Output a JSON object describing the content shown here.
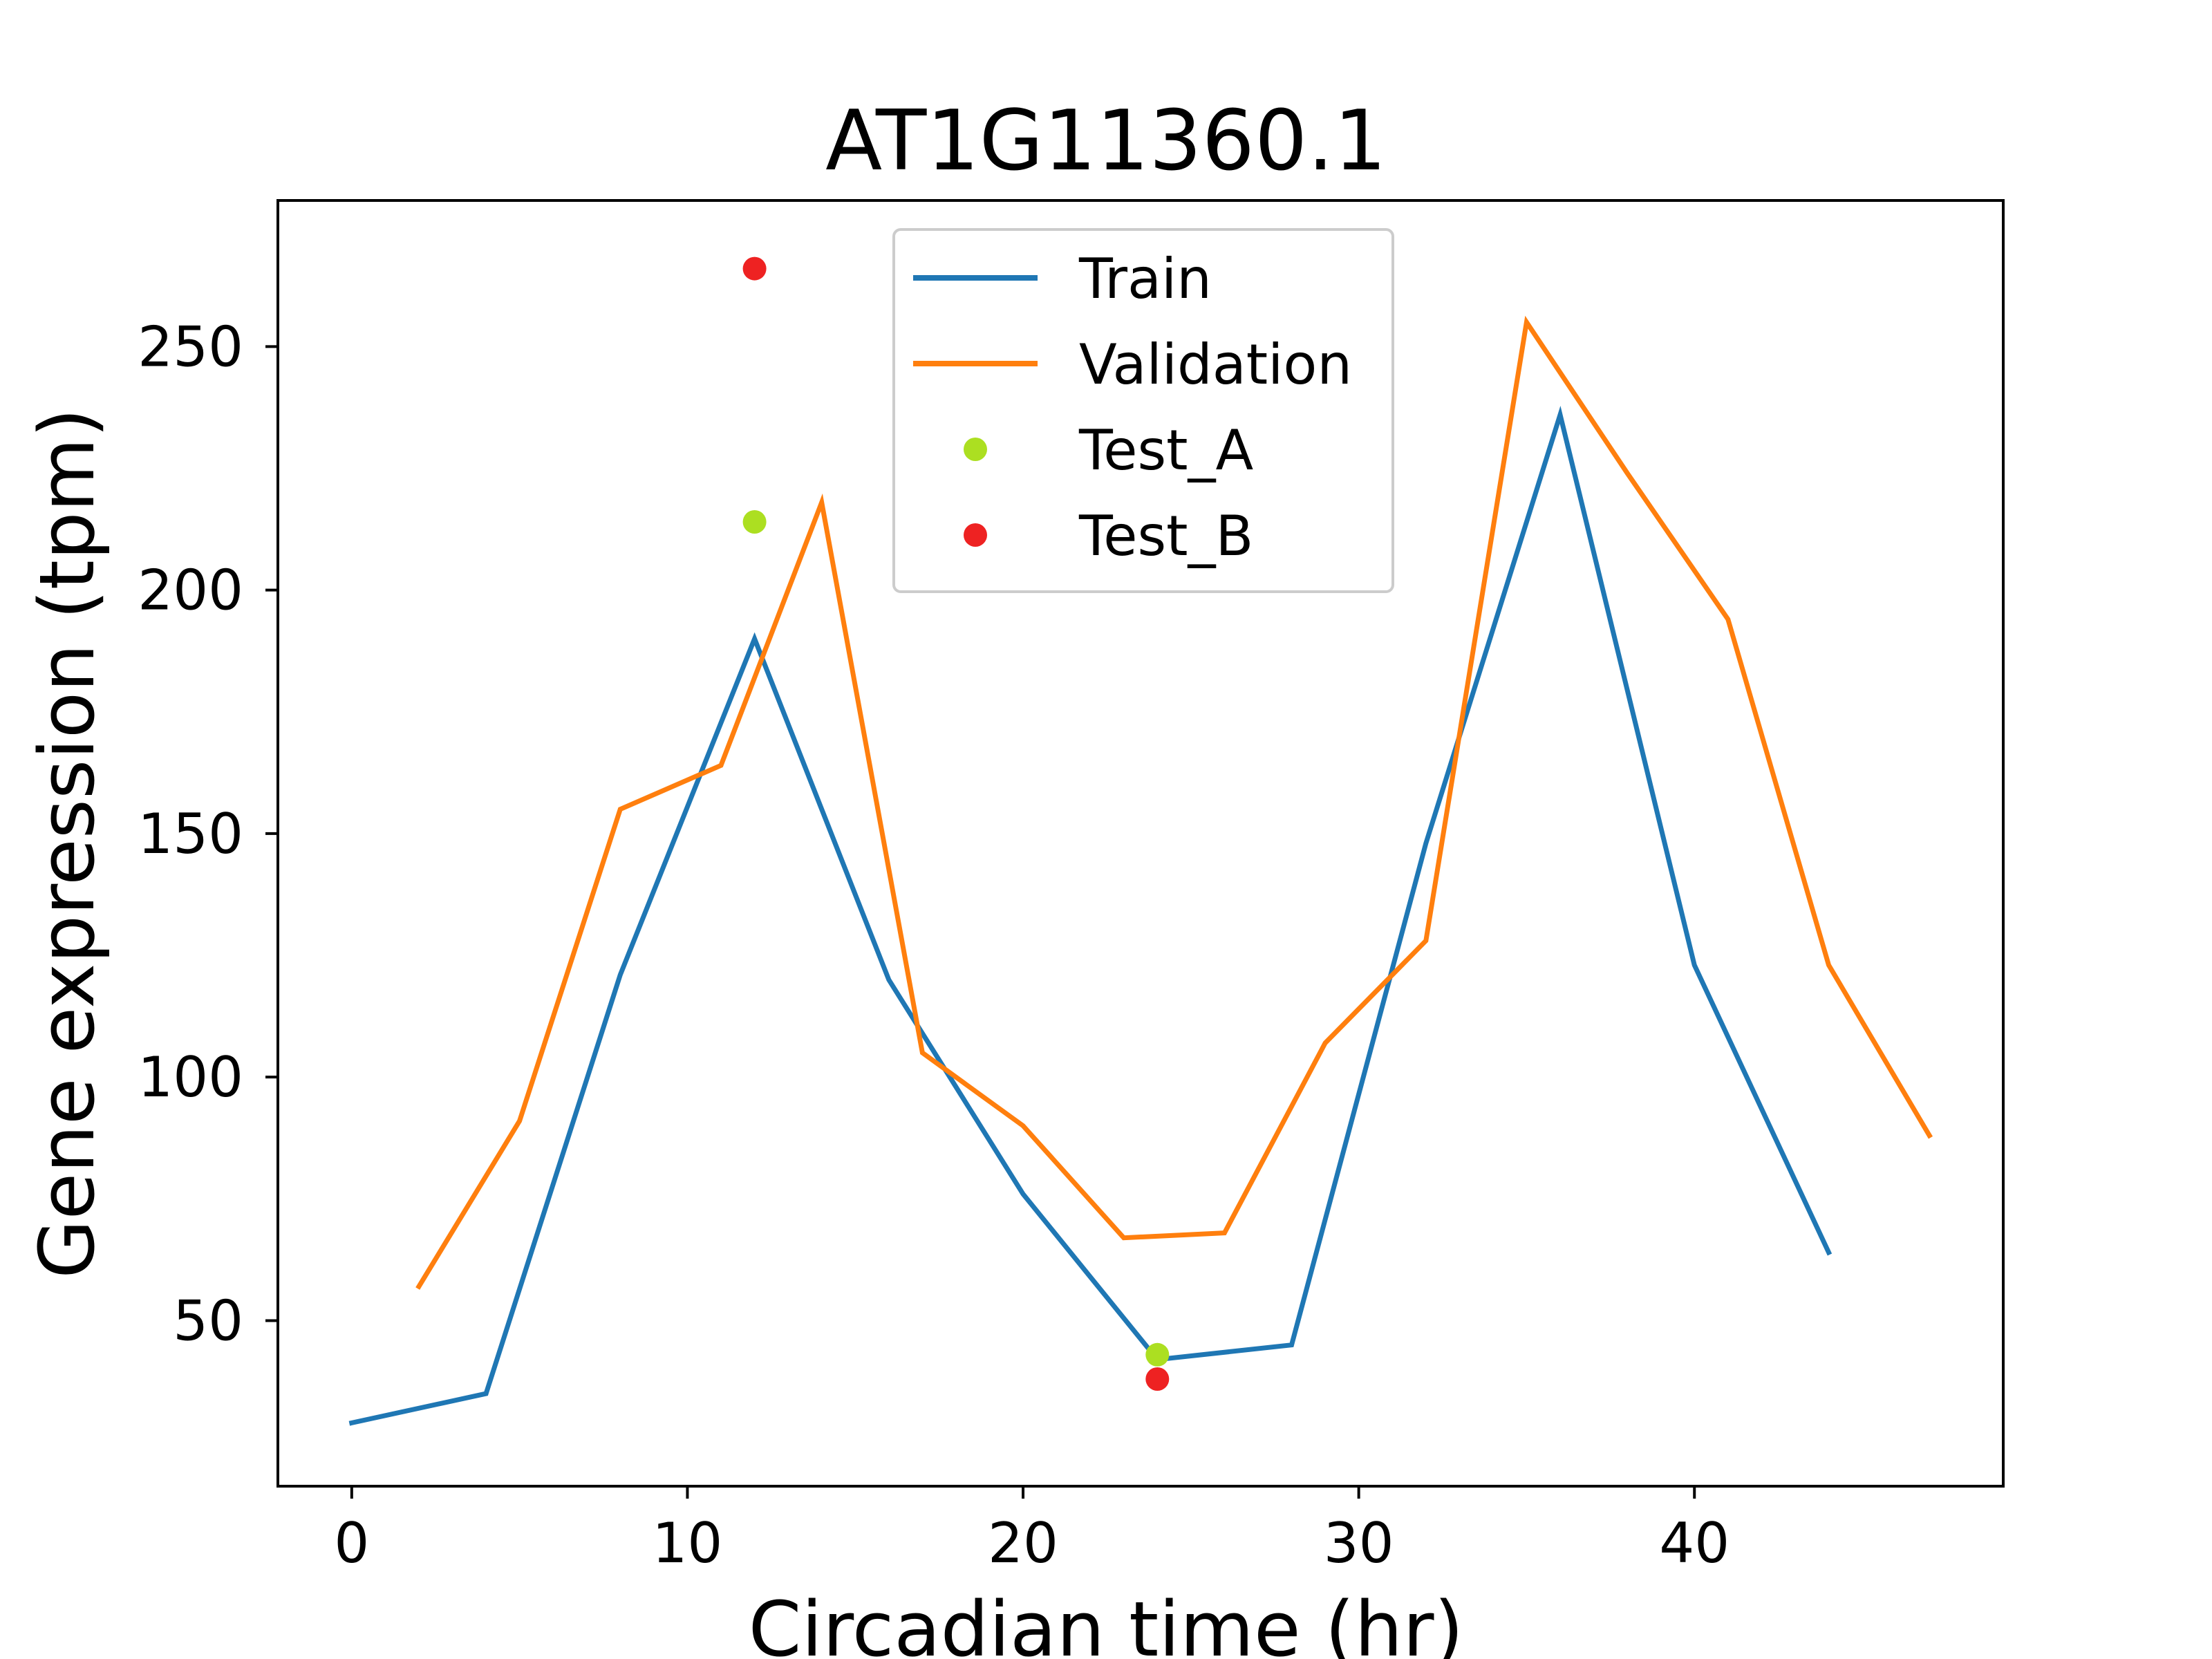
{
  "chart_data": {
    "type": "line",
    "title": "AT1G11360.1",
    "xlabel": "Circadian time (hr)",
    "ylabel": "Gene expression (tpm)",
    "xlim": [
      -2.2,
      49.2
    ],
    "ylim": [
      16,
      280
    ],
    "xticks": [
      0,
      10,
      20,
      30,
      40
    ],
    "yticks": [
      50,
      100,
      150,
      200,
      250
    ],
    "grid": false,
    "legend_position": "top-center",
    "series": [
      {
        "name": "Train",
        "kind": "line",
        "color": "#1f77b4",
        "x": [
          0,
          4,
          8,
          12,
          16,
          20,
          24,
          28,
          32,
          36,
          40,
          44
        ],
        "y": [
          29,
          35,
          121,
          190,
          120,
          76,
          42,
          45,
          148,
          236,
          123,
          64
        ]
      },
      {
        "name": "Validation",
        "kind": "line",
        "color": "#ff7f0e",
        "x": [
          2,
          5,
          8,
          11,
          14,
          17,
          20,
          23,
          26,
          29,
          32,
          35,
          38,
          41,
          44,
          47
        ],
        "y": [
          57,
          91,
          155,
          164,
          218,
          105,
          90,
          67,
          68,
          107,
          128,
          255,
          224,
          194,
          123,
          88
        ]
      },
      {
        "name": "Test_A",
        "kind": "scatter",
        "color": "#acdf21",
        "x": [
          12,
          24
        ],
        "y": [
          214,
          43
        ]
      },
      {
        "name": "Test_B",
        "kind": "scatter",
        "color": "#ee2222",
        "x": [
          12,
          24
        ],
        "y": [
          266,
          38
        ]
      }
    ]
  }
}
